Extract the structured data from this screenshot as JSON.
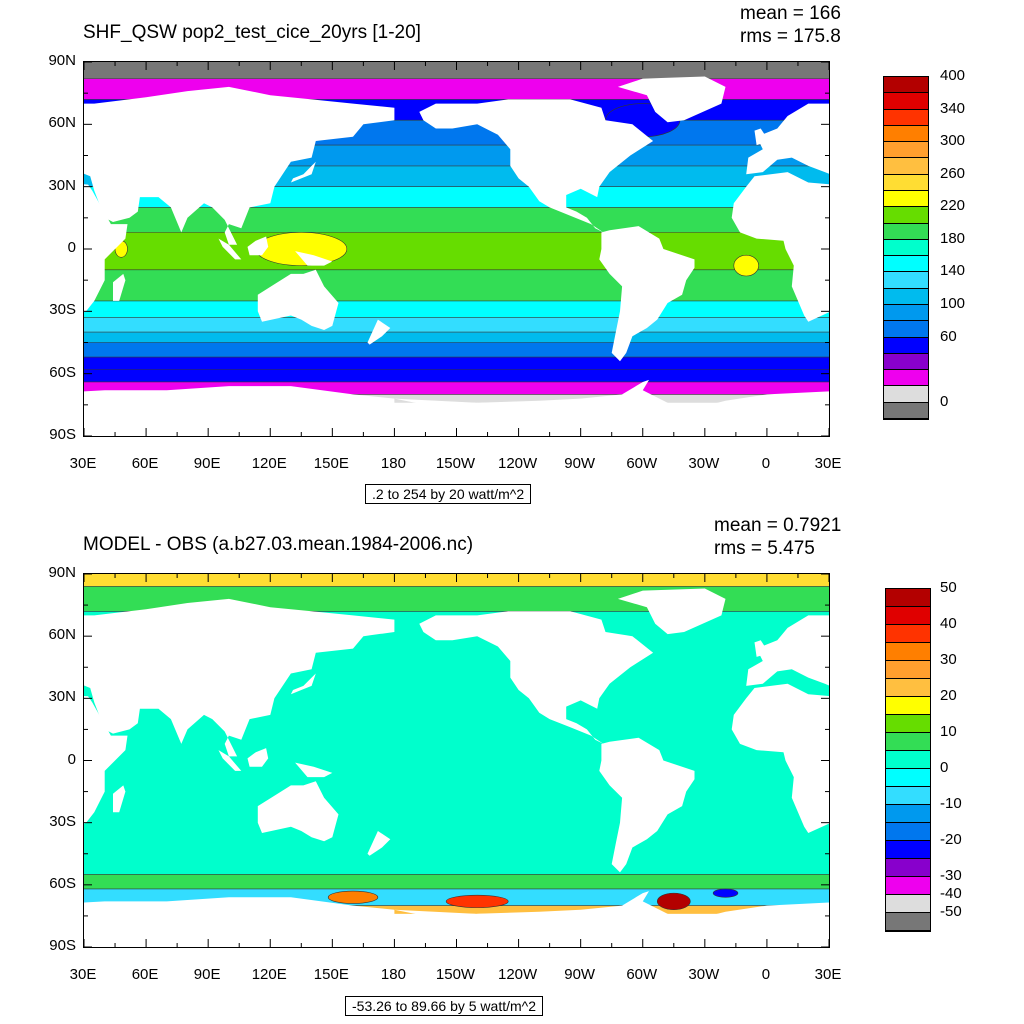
{
  "panels": [
    {
      "id": "top",
      "title": "SHF_QSW pop2_test_cice_20yrs [1-20]",
      "mean_text": "mean = 166",
      "rms_text": "rms = 175.8",
      "info_text": ".2 to 254 by 20 watt/m^2",
      "lat_labels": [
        "90N",
        "60N",
        "30N",
        "0",
        "30S",
        "60S",
        "90S"
      ],
      "lon_labels": [
        "30E",
        "60E",
        "90E",
        "120E",
        "150E",
        "180",
        "150W",
        "120W",
        "90W",
        "60W",
        "30W",
        "0",
        "30E"
      ],
      "colorbar": {
        "colors": [
          "#b30000",
          "#e00000",
          "#ff3300",
          "#ff7f00",
          "#ff9f2e",
          "#ffbf40",
          "#ffdd33",
          "#ffff00",
          "#66dd00",
          "#33dd55",
          "#00ffcc",
          "#00ffff",
          "#33ddff",
          "#00bbee",
          "#0099ee",
          "#0077ee",
          "#0000ff",
          "#8800cc",
          "#ee00ee",
          "#dddddd",
          "#777777"
        ],
        "labels": [
          "400",
          "340",
          "300",
          "260",
          "220",
          "180",
          "140",
          "100",
          "60",
          "0"
        ],
        "label_indices": [
          0,
          2,
          4,
          6,
          8,
          10,
          12,
          14,
          16,
          20
        ]
      },
      "zones": [
        {
          "lat_from": 90,
          "lat_to": 82,
          "color": "#777777"
        },
        {
          "lat_from": 82,
          "lat_to": 72,
          "color": "#ee00ee"
        },
        {
          "lat_from": 72,
          "lat_to": 62,
          "color": "#0000ff"
        },
        {
          "lat_from": 62,
          "lat_to": 50,
          "color": "#0077ee"
        },
        {
          "lat_from": 50,
          "lat_to": 40,
          "color": "#0099ee"
        },
        {
          "lat_from": 40,
          "lat_to": 30,
          "color": "#00bbee"
        },
        {
          "lat_from": 30,
          "lat_to": 20,
          "color": "#00ffff"
        },
        {
          "lat_from": 20,
          "lat_to": 8,
          "color": "#33dd55"
        },
        {
          "lat_from": 8,
          "lat_to": -10,
          "color": "#66dd00"
        },
        {
          "lat_from": -10,
          "lat_to": -25,
          "color": "#33dd55"
        },
        {
          "lat_from": -25,
          "lat_to": -33,
          "color": "#00ffff"
        },
        {
          "lat_from": -33,
          "lat_to": -40,
          "color": "#33ddff"
        },
        {
          "lat_from": -40,
          "lat_to": -45,
          "color": "#00bbee"
        },
        {
          "lat_from": -45,
          "lat_to": -52,
          "color": "#0077ee"
        },
        {
          "lat_from": -52,
          "lat_to": -58,
          "color": "#0000ff"
        },
        {
          "lat_from": -58,
          "lat_to": -64,
          "color": "#0000ff"
        },
        {
          "lat_from": -64,
          "lat_to": -70,
          "color": "#ee00ee"
        },
        {
          "lat_from": -70,
          "lat_to": -74,
          "color": "#dddddd"
        }
      ],
      "patches": [
        {
          "lon": 135,
          "lat": 0,
          "rx": 22,
          "ry": 8,
          "color": "#ffff00"
        },
        {
          "lon": -10,
          "lat": -8,
          "rx": 6,
          "ry": 5,
          "color": "#ffff00"
        },
        {
          "lon": 48,
          "lat": 0,
          "rx": 3,
          "ry": 4,
          "color": "#ffff00"
        },
        {
          "lon": -60,
          "lat": 62,
          "rx": 18,
          "ry": 8,
          "color": "#0000ff"
        }
      ]
    },
    {
      "id": "bottom",
      "title": "MODEL - OBS (a.b27.03.mean.1984-2006.nc)",
      "mean_text": "mean = 0.7921",
      "rms_text": "rms = 5.475",
      "info_text": "-53.26 to 89.66 by 5 watt/m^2",
      "lat_labels": [
        "90N",
        "60N",
        "30N",
        "0",
        "30S",
        "60S",
        "90S"
      ],
      "lon_labels": [
        "30E",
        "60E",
        "90E",
        "120E",
        "150E",
        "180",
        "150W",
        "120W",
        "90W",
        "60W",
        "30W",
        "0",
        "30E"
      ],
      "colorbar": {
        "colors": [
          "#b30000",
          "#e00000",
          "#ff3300",
          "#ff7f00",
          "#ff9f2e",
          "#ffbf40",
          "#ffff00",
          "#66dd00",
          "#33dd55",
          "#00ffcc",
          "#00ffff",
          "#33ddff",
          "#0099ee",
          "#0077ee",
          "#0000ff",
          "#8800cc",
          "#ee00ee",
          "#dddddd",
          "#777777"
        ],
        "labels": [
          "50",
          "40",
          "30",
          "20",
          "10",
          "0",
          "-10",
          "-20",
          "-30",
          "-40",
          "-50"
        ],
        "label_indices": [
          0,
          2,
          4,
          6,
          8,
          10,
          12,
          14,
          16,
          17,
          18
        ]
      },
      "zones": [
        {
          "lat_from": 90,
          "lat_to": 84,
          "color": "#ffdd33"
        },
        {
          "lat_from": 84,
          "lat_to": 72,
          "color": "#33dd55"
        },
        {
          "lat_from": 72,
          "lat_to": -55,
          "color": "#00ffcc"
        },
        {
          "lat_from": -55,
          "lat_to": -62,
          "color": "#33dd55"
        },
        {
          "lat_from": -62,
          "lat_to": -70,
          "color": "#33ddff"
        },
        {
          "lat_from": -70,
          "lat_to": -74,
          "color": "#ffbf40"
        }
      ],
      "patches": [
        {
          "lon": -45,
          "lat": -68,
          "rx": 8,
          "ry": 4,
          "color": "#b30000"
        },
        {
          "lon": -140,
          "lat": -68,
          "rx": 15,
          "ry": 3,
          "color": "#ff3300"
        },
        {
          "lon": 160,
          "lat": -66,
          "rx": 12,
          "ry": 3,
          "color": "#ff7f00"
        },
        {
          "lon": -20,
          "lat": -64,
          "rx": 6,
          "ry": 2,
          "color": "#0000ff"
        }
      ]
    }
  ],
  "land": [
    {
      "name": "north-america",
      "points": [
        [
          -168,
          66
        ],
        [
          -160,
          70
        ],
        [
          -140,
          70
        ],
        [
          -125,
          72
        ],
        [
          -95,
          72
        ],
        [
          -80,
          68
        ],
        [
          -78,
          62
        ],
        [
          -65,
          60
        ],
        [
          -55,
          52
        ],
        [
          -66,
          45
        ],
        [
          -76,
          37
        ],
        [
          -81,
          30
        ],
        [
          -82,
          25
        ],
        [
          -90,
          29
        ],
        [
          -97,
          26
        ],
        [
          -97,
          20
        ],
        [
          -92,
          18
        ],
        [
          -87,
          15
        ],
        [
          -83,
          10
        ],
        [
          -79,
          8
        ],
        [
          -85,
          12
        ],
        [
          -95,
          16
        ],
        [
          -105,
          20
        ],
        [
          -110,
          23
        ],
        [
          -115,
          30
        ],
        [
          -120,
          34
        ],
        [
          -124,
          40
        ],
        [
          -124,
          48
        ],
        [
          -130,
          55
        ],
        [
          -140,
          60
        ],
        [
          -152,
          58
        ],
        [
          -160,
          58
        ],
        [
          -166,
          62
        ]
      ]
    },
    {
      "name": "greenland",
      "points": [
        [
          -72,
          78
        ],
        [
          -60,
          82
        ],
        [
          -30,
          83
        ],
        [
          -20,
          78
        ],
        [
          -22,
          70
        ],
        [
          -40,
          62
        ],
        [
          -48,
          61
        ],
        [
          -54,
          66
        ],
        [
          -58,
          74
        ]
      ]
    },
    {
      "name": "south-america",
      "points": [
        [
          -80,
          8
        ],
        [
          -76,
          9
        ],
        [
          -62,
          11
        ],
        [
          -52,
          5
        ],
        [
          -50,
          0
        ],
        [
          -35,
          -5
        ],
        [
          -35,
          -9
        ],
        [
          -39,
          -15
        ],
        [
          -41,
          -22
        ],
        [
          -48,
          -26
        ],
        [
          -53,
          -34
        ],
        [
          -58,
          -38
        ],
        [
          -65,
          -42
        ],
        [
          -68,
          -50
        ],
        [
          -71,
          -54
        ],
        [
          -75,
          -50
        ],
        [
          -73,
          -40
        ],
        [
          -71,
          -30
        ],
        [
          -70,
          -18
        ],
        [
          -76,
          -12
        ],
        [
          -81,
          -5
        ],
        [
          -80,
          0
        ]
      ]
    },
    {
      "name": "africa",
      "points": [
        [
          -17,
          15
        ],
        [
          -16,
          22
        ],
        [
          -10,
          30
        ],
        [
          -6,
          35
        ],
        [
          10,
          37
        ],
        [
          20,
          32
        ],
        [
          32,
          31
        ],
        [
          34,
          28
        ],
        [
          43,
          12
        ],
        [
          51,
          12
        ],
        [
          50,
          5
        ],
        [
          40,
          -5
        ],
        [
          40,
          -15
        ],
        [
          35,
          -25
        ],
        [
          31,
          -30
        ],
        [
          20,
          -35
        ],
        [
          18,
          -32
        ],
        [
          12,
          -18
        ],
        [
          13,
          -8
        ],
        [
          9,
          0
        ],
        [
          8,
          4
        ],
        [
          -5,
          5
        ],
        [
          -13,
          8
        ]
      ]
    },
    {
      "name": "eurasia",
      "points": [
        [
          -10,
          36
        ],
        [
          -9,
          44
        ],
        [
          -2,
          48
        ],
        [
          -5,
          54
        ],
        [
          5,
          58
        ],
        [
          10,
          64
        ],
        [
          20,
          70
        ],
        [
          35,
          70
        ],
        [
          60,
          73
        ],
        [
          80,
          76
        ],
        [
          100,
          78
        ],
        [
          120,
          74
        ],
        [
          140,
          72
        ],
        [
          160,
          70
        ],
        [
          180,
          68
        ],
        [
          180,
          62
        ],
        [
          165,
          60
        ],
        [
          160,
          54
        ],
        [
          142,
          52
        ],
        [
          140,
          44
        ],
        [
          130,
          42
        ],
        [
          122,
          30
        ],
        [
          120,
          22
        ],
        [
          110,
          20
        ],
        [
          106,
          10
        ],
        [
          100,
          12
        ],
        [
          98,
          8
        ],
        [
          100,
          2
        ],
        [
          104,
          2
        ],
        [
          98,
          14
        ],
        [
          92,
          20
        ],
        [
          88,
          22
        ],
        [
          80,
          15
        ],
        [
          77,
          8
        ],
        [
          72,
          20
        ],
        [
          66,
          25
        ],
        [
          57,
          25
        ],
        [
          56,
          18
        ],
        [
          52,
          15
        ],
        [
          44,
          13
        ],
        [
          40,
          15
        ],
        [
          35,
          28
        ],
        [
          33,
          35
        ],
        [
          28,
          37
        ],
        [
          20,
          40
        ],
        [
          12,
          44
        ],
        [
          5,
          43
        ],
        [
          -2,
          37
        ]
      ]
    },
    {
      "name": "australia",
      "points": [
        [
          114,
          -22
        ],
        [
          122,
          -17
        ],
        [
          130,
          -12
        ],
        [
          136,
          -12
        ],
        [
          142,
          -10
        ],
        [
          146,
          -18
        ],
        [
          153,
          -26
        ],
        [
          150,
          -37
        ],
        [
          146,
          -39
        ],
        [
          140,
          -37
        ],
        [
          135,
          -34
        ],
        [
          130,
          -32
        ],
        [
          116,
          -35
        ],
        [
          114,
          -30
        ]
      ]
    },
    {
      "name": "borneo",
      "points": [
        [
          109,
          1
        ],
        [
          113,
          4
        ],
        [
          118,
          6
        ],
        [
          119,
          1
        ],
        [
          116,
          -3
        ],
        [
          110,
          -3
        ]
      ]
    },
    {
      "name": "sumatra",
      "points": [
        [
          95,
          5
        ],
        [
          100,
          2
        ],
        [
          106,
          -5
        ],
        [
          103,
          -5
        ],
        [
          97,
          1
        ]
      ]
    },
    {
      "name": "new-guinea",
      "points": [
        [
          132,
          -1
        ],
        [
          141,
          -3
        ],
        [
          150,
          -6
        ],
        [
          146,
          -8
        ],
        [
          138,
          -8
        ]
      ]
    },
    {
      "name": "japan",
      "points": [
        [
          130,
          32
        ],
        [
          135,
          34
        ],
        [
          140,
          36
        ],
        [
          142,
          42
        ],
        [
          140,
          40
        ],
        [
          136,
          36
        ],
        [
          131,
          34
        ]
      ]
    },
    {
      "name": "madagascar",
      "points": [
        [
          44,
          -25
        ],
        [
          47,
          -25
        ],
        [
          50,
          -15
        ],
        [
          49,
          -12
        ],
        [
          44,
          -16
        ]
      ]
    },
    {
      "name": "britain",
      "points": [
        [
          -5,
          50
        ],
        [
          2,
          52
        ],
        [
          -1,
          55
        ],
        [
          -3,
          58
        ],
        [
          -6,
          57
        ]
      ]
    },
    {
      "name": "new-zealand",
      "points": [
        [
          172,
          -34
        ],
        [
          178,
          -38
        ],
        [
          174,
          -42
        ],
        [
          168,
          -46
        ],
        [
          167,
          -45
        ]
      ]
    },
    {
      "name": "antarctica",
      "points": [
        [
          -180,
          -72
        ],
        [
          -160,
          -76
        ],
        [
          -140,
          -74
        ],
        [
          -110,
          -73
        ],
        [
          -90,
          -72
        ],
        [
          -70,
          -70
        ],
        [
          -60,
          -64
        ],
        [
          -57,
          -63
        ],
        [
          -60,
          -68
        ],
        [
          -40,
          -78
        ],
        [
          -20,
          -73
        ],
        [
          0,
          -70
        ],
        [
          40,
          -68
        ],
        [
          70,
          -68
        ],
        [
          100,
          -66
        ],
        [
          130,
          -66
        ],
        [
          160,
          -70
        ],
        [
          180,
          -72
        ],
        [
          180,
          -90
        ],
        [
          -180,
          -90
        ]
      ]
    }
  ]
}
